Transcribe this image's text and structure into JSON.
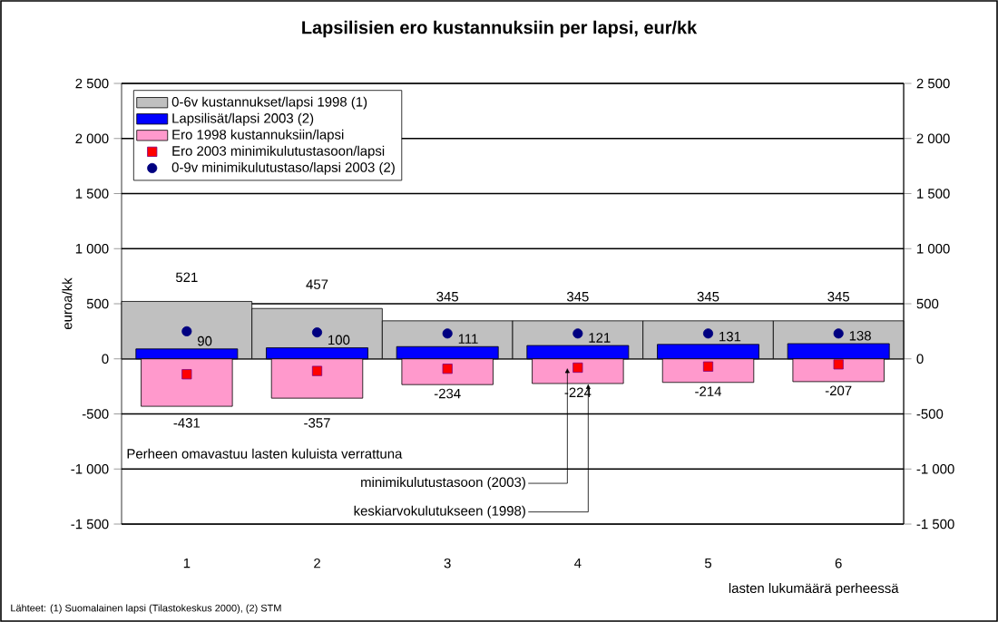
{
  "chart_data": {
    "type": "bar",
    "title": "Lapsilisien ero kustannuksiin per lapsi, eur/kk",
    "xlabel": "lasten lukumäärä perheessä",
    "ylabel": "euroa/kk",
    "categories": [
      "1",
      "2",
      "3",
      "4",
      "5",
      "6"
    ],
    "series": [
      {
        "name": "0-6v kustannukset/lapsi 1998 (1)",
        "color": "#c0c0c0",
        "values": [
          521,
          457,
          345,
          345,
          345,
          345
        ],
        "value_labels": [
          "521",
          "457",
          "345",
          "345",
          "345",
          "345"
        ]
      },
      {
        "name": "Lapsilisät/lapsi 2003 (2)",
        "color": "#0000ff",
        "values": [
          90,
          100,
          111,
          121,
          131,
          138
        ],
        "value_labels": [
          "90",
          "100",
          "111",
          "121",
          "131",
          "138"
        ]
      },
      {
        "name": "Ero 1998 kustannuksiin/lapsi",
        "color": "#ff99cc",
        "values": [
          -431,
          -357,
          -234,
          -224,
          -214,
          -207
        ],
        "value_labels": [
          "-431",
          "-357",
          "-234",
          "-224",
          "-214",
          "-207"
        ]
      },
      {
        "name": "Ero 2003 minimikulutustasoon/lapsi",
        "type": "scatter",
        "marker": "square",
        "color": "#ff0000",
        "values": [
          -140,
          -110,
          -90,
          -80,
          -70,
          -50
        ]
      },
      {
        "name": "0-9v minimikulutustaso/lapsi 2003 (2)",
        "type": "scatter",
        "marker": "circle",
        "color": "#000080",
        "values": [
          250,
          240,
          230,
          230,
          230,
          230
        ]
      }
    ],
    "ylim": [
      -1500,
      2500
    ],
    "yticks": [
      {
        "value": -1500,
        "label": "-1 500"
      },
      {
        "value": -1000,
        "label": "-1 000"
      },
      -500,
      0,
      500,
      {
        "value": 1000,
        "label": "1 000"
      },
      {
        "value": 1500,
        "label": "1 500"
      },
      {
        "value": 2000,
        "label": "2 000"
      },
      {
        "value": 2500,
        "label": "2 500"
      }
    ],
    "y2lim": [
      -1500,
      2500
    ],
    "y2ticks": [
      {
        "value": -1500,
        "label": "-1 500"
      },
      {
        "value": -1000,
        "label": "-1 000"
      },
      -500,
      0,
      500,
      {
        "value": 1000,
        "label": "1 000"
      },
      {
        "value": 1500,
        "label": "1 500"
      },
      {
        "value": 2000,
        "label": "2 000"
      },
      {
        "value": 2500,
        "label": "2 500"
      }
    ],
    "grid": "y",
    "legend": "top left",
    "annotations": [
      "Perheen omavastuu lasten kuluista verrattuna",
      {
        "text": "minimikulutustasoon (2003)",
        "x": "4",
        "y": -80
      },
      {
        "text": "keskiarvokulutukseen (1998)",
        "x": "4",
        "y": -224
      },
      "Lähteet: (1) Suomalainen lapsi (Tilastokeskus 2000), (2) STM"
    ]
  }
}
